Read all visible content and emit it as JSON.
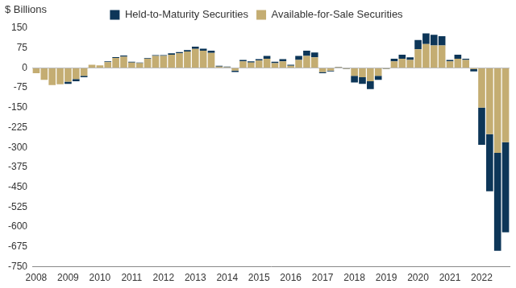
{
  "chart_data": {
    "type": "bar",
    "ylabel": "$ Billions",
    "categories": [
      "2008",
      null,
      null,
      null,
      "2009",
      null,
      null,
      null,
      "2010",
      null,
      null,
      null,
      "2011",
      null,
      null,
      null,
      "2012",
      null,
      null,
      null,
      "2013",
      null,
      null,
      null,
      "2014",
      null,
      null,
      null,
      "2015",
      null,
      null,
      null,
      "2016",
      null,
      null,
      null,
      "2017",
      null,
      null,
      null,
      "2018",
      null,
      null,
      null,
      "2019",
      null,
      null,
      null,
      "2020",
      null,
      null,
      null,
      "2021",
      null,
      null,
      null,
      "2022",
      null,
      null,
      null
    ],
    "series": [
      {
        "name": "Available-for-Sale Securities",
        "color": "#c4ad72",
        "values": [
          -20,
          -45,
          -65,
          -62,
          -52,
          -42,
          -30,
          12,
          10,
          22,
          38,
          42,
          20,
          18,
          35,
          45,
          45,
          50,
          55,
          62,
          72,
          65,
          57,
          5,
          3,
          -10,
          25,
          20,
          28,
          35,
          18,
          25,
          8,
          30,
          45,
          40,
          -15,
          -10,
          3,
          -3,
          -30,
          -35,
          -50,
          -30,
          -3,
          25,
          35,
          30,
          70,
          90,
          85,
          85,
          25,
          35,
          30,
          -5,
          -150,
          -250,
          -320,
          -280
        ]
      },
      {
        "name": "Held-to-Maturity Securities",
        "color": "#0d3658",
        "values": [
          0,
          0,
          0,
          0,
          -8,
          -8,
          -5,
          0,
          0,
          3,
          3,
          5,
          3,
          2,
          2,
          3,
          3,
          5,
          5,
          5,
          8,
          8,
          8,
          3,
          2,
          -5,
          5,
          5,
          5,
          10,
          5,
          8,
          4,
          15,
          20,
          18,
          -5,
          -3,
          1,
          -2,
          -25,
          -25,
          -30,
          -15,
          -2,
          10,
          15,
          10,
          35,
          40,
          40,
          35,
          5,
          15,
          5,
          -8,
          -140,
          -215,
          -370,
          -340
        ]
      }
    ],
    "ylim": [
      -750,
      150
    ],
    "yticks": [
      -750,
      -675,
      -600,
      -525,
      -450,
      -375,
      -300,
      -225,
      -150,
      -75,
      0,
      75,
      150
    ],
    "stacked": true,
    "grid": false,
    "legend": "top"
  }
}
